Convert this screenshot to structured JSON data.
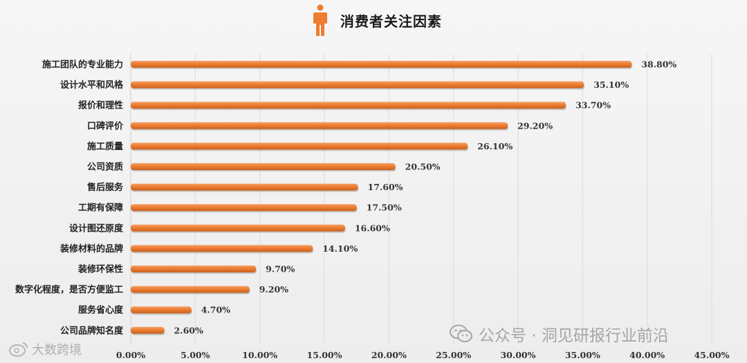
{
  "header": {
    "title": "消费者关注因素",
    "icon": "person-icon",
    "accent_color": "#ED7D31"
  },
  "chart_data": {
    "type": "bar",
    "orientation": "horizontal",
    "title": "消费者关注因素",
    "categories": [
      "施工团队的专业能力",
      "设计水平和风格",
      "报价和理性",
      "口碑评价",
      "施工质量",
      "公司资质",
      "售后服务",
      "工期有保障",
      "设计图还原度",
      "装修材料的品牌",
      "装修环保性",
      "数字化程度，是否方便监工",
      "服务省心度",
      "公司品牌知名度"
    ],
    "values": [
      38.8,
      35.1,
      33.7,
      29.2,
      26.1,
      20.5,
      17.6,
      17.5,
      16.6,
      14.1,
      9.7,
      9.2,
      4.7,
      2.6
    ],
    "value_labels": [
      "38.80%",
      "35.10%",
      "33.70%",
      "29.20%",
      "26.10%",
      "20.50%",
      "17.60%",
      "17.50%",
      "16.60%",
      "14.10%",
      "9.70%",
      "9.20%",
      "4.70%",
      "2.60%"
    ],
    "xlim": [
      0,
      45
    ],
    "x_ticks": [
      0,
      5,
      10,
      15,
      20,
      25,
      30,
      35,
      40,
      45
    ],
    "x_tick_labels": [
      "0.00%",
      "5.00%",
      "10.00%",
      "15.00%",
      "20.00%",
      "25.00%",
      "30.00%",
      "35.00%",
      "40.00%",
      "45.00%"
    ],
    "grid": true,
    "bar_color": "#ED7D31",
    "xlabel": "",
    "ylabel": ""
  },
  "watermarks": {
    "wechat_text": "公众号 · 洞见研报行业前沿",
    "wechat_icon": "wechat-icon",
    "corner_text": "大数跨境",
    "corner_icon": "weibo-icon"
  }
}
